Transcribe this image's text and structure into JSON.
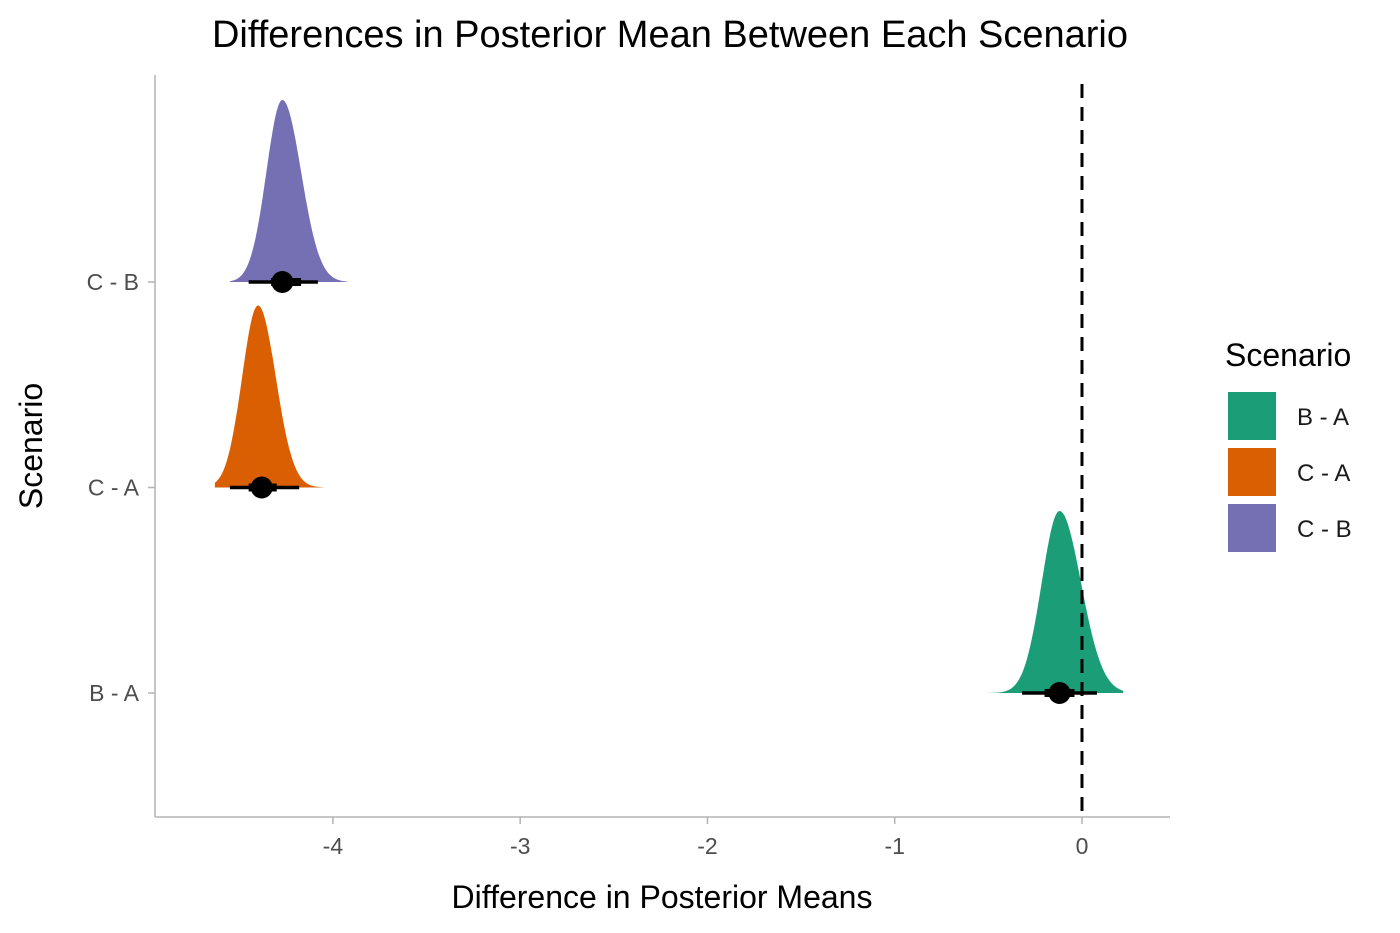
{
  "chart_data": {
    "type": "halfeye",
    "title": "Differences in Posterior Mean Between Each Scenario",
    "xlabel": "Difference in Posterior Means",
    "ylabel": "Scenario",
    "xlim": [
      -4.95,
      0.47
    ],
    "x_ticks": [
      -4,
      -3,
      -2,
      -1,
      0
    ],
    "x_tick_labels": [
      "-4",
      "-3",
      "-2",
      "-1",
      "0"
    ],
    "categories": [
      "B - A",
      "C - A",
      "C - B"
    ],
    "reference_line": {
      "x": 0,
      "style": "dashed"
    },
    "grid": false,
    "legend": {
      "title": "Scenario",
      "position": "right",
      "entries": [
        "B - A",
        "C - A",
        "C - B"
      ]
    },
    "series": [
      {
        "name": "B - A",
        "color": "#1b9e77",
        "mode": -0.12,
        "point": -0.12,
        "sd_left": 0.095,
        "sd_right": 0.115,
        "range": [
          -0.5,
          0.22
        ],
        "interval_66": [
          -0.2,
          -0.04
        ],
        "interval_95": [
          -0.32,
          0.08
        ]
      },
      {
        "name": "C - A",
        "color": "#d95f02",
        "mode": -4.4,
        "point": -4.38,
        "sd_left": 0.085,
        "sd_right": 0.095,
        "range": [
          -4.63,
          -4.05
        ],
        "interval_66": [
          -4.45,
          -4.3
        ],
        "interval_95": [
          -4.55,
          -4.18
        ]
      },
      {
        "name": "C - B",
        "color": "#7570b3",
        "mode": -4.27,
        "point": -4.27,
        "sd_left": 0.085,
        "sd_right": 0.1,
        "range": [
          -4.55,
          -3.92
        ],
        "interval_66": [
          -4.33,
          -4.17
        ],
        "interval_95": [
          -4.45,
          -4.08
        ]
      }
    ]
  }
}
